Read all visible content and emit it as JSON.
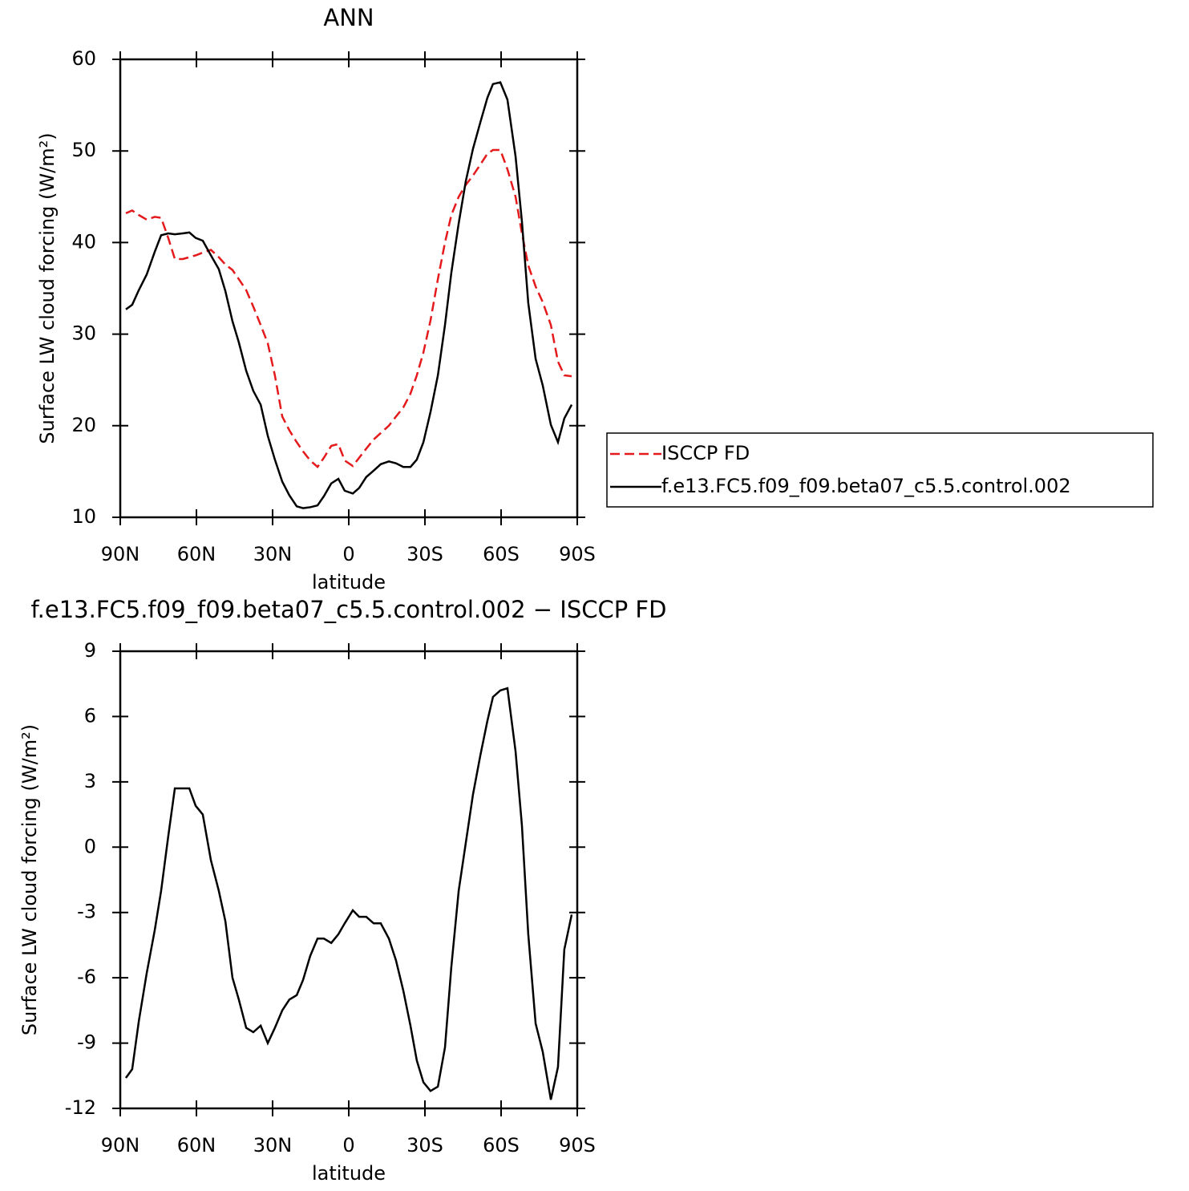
{
  "chart_data": [
    {
      "type": "line",
      "title": "ANN",
      "xlabel": "latitude",
      "ylabel": "Surface LW cloud forcing (W/m²)",
      "x": [
        87.8,
        85.3,
        82.7,
        79.6,
        76.4,
        73.9,
        71.1,
        68.5,
        65.4,
        62.8,
        60.3,
        57.5,
        54.3,
        51.2,
        48.6,
        45.8,
        43.3,
        40.4,
        37.6,
        34.7,
        31.9,
        29.1,
        26.2,
        23.4,
        20.5,
        18.0,
        15.2,
        12.3,
        9.8,
        6.9,
        4.1,
        1.6,
        -1.6,
        -4.1,
        -6.9,
        -9.8,
        -12.6,
        -15.8,
        -18.6,
        -21.5,
        -24.3,
        -26.8,
        -29.4,
        -32.2,
        -35.1,
        -37.9,
        -40.4,
        -43.3,
        -46.1,
        -48.9,
        -51.8,
        -54.6,
        -56.8,
        -59.7,
        -62.5,
        -65.7,
        -68.2,
        -70.7,
        -73.6,
        -76.4,
        -79.6,
        -82.4,
        -84.9,
        -87.8
      ],
      "series": [
        {
          "name": "ISCCP FD",
          "color": "#e41a1c",
          "style": "dashed",
          "values": [
            43.2,
            43.5,
            43.0,
            42.5,
            42.8,
            42.7,
            40.5,
            38.2,
            38.2,
            38.4,
            38.6,
            38.9,
            39.2,
            38.4,
            37.6,
            37.0,
            36.0,
            34.8,
            33.0,
            31.0,
            29.0,
            25.5,
            21.0,
            19.5,
            18.2,
            17.2,
            16.2,
            15.5,
            16.5,
            17.8,
            18.0,
            16.2,
            15.6,
            16.5,
            17.5,
            18.5,
            19.2,
            20.0,
            21.0,
            22.0,
            23.5,
            25.5,
            28.0,
            31.5,
            36.0,
            40.0,
            43.0,
            45.0,
            46.3,
            47.3,
            48.5,
            49.7,
            50.1,
            50.1,
            48.0,
            45.0,
            41.0,
            37.5,
            35.2,
            33.5,
            31.0,
            27.0,
            25.5,
            25.4
          ]
        },
        {
          "name": "f.e13.FC5.f09_f09.beta07_c5.5.control.002",
          "color": "#000000",
          "style": "solid",
          "values": [
            32.7,
            33.2,
            34.8,
            36.5,
            39.0,
            40.8,
            41.0,
            40.9,
            41.0,
            41.1,
            40.5,
            40.2,
            38.6,
            37.1,
            34.7,
            31.4,
            29.1,
            26.0,
            23.8,
            22.3,
            18.9,
            16.3,
            13.9,
            12.4,
            11.2,
            11.0,
            11.1,
            11.3,
            12.3,
            13.7,
            14.2,
            12.9,
            12.6,
            13.2,
            14.4,
            15.1,
            15.8,
            16.1,
            15.9,
            15.5,
            15.5,
            16.3,
            18.2,
            21.5,
            25.5,
            31.0,
            36.7,
            42.1,
            46.7,
            50.2,
            53.1,
            55.8,
            57.3,
            57.5,
            55.6,
            49.4,
            42.3,
            33.4,
            27.3,
            24.4,
            20.1,
            18.2,
            20.8,
            22.3
          ]
        }
      ],
      "xlim": [
        90,
        -90
      ],
      "xticks": [
        {
          "value": 90,
          "label": "90N"
        },
        {
          "value": 60,
          "label": "60N"
        },
        {
          "value": 30,
          "label": "30N"
        },
        0,
        {
          "value": -30,
          "label": "30S"
        },
        {
          "value": -60,
          "label": "60S"
        },
        {
          "value": -90,
          "label": "90S"
        }
      ],
      "ylim": [
        10,
        60
      ],
      "yticks": [
        10,
        20,
        30,
        40,
        50,
        60
      ],
      "legend": "right"
    },
    {
      "type": "line",
      "title": "f.e13.FC5.f09_f09.beta07_c5.5.control.002 − ISCCP FD",
      "xlabel": "latitude",
      "ylabel": "Surface LW cloud forcing (W/m²)",
      "x": [
        87.8,
        85.3,
        82.7,
        79.6,
        76.4,
        73.9,
        71.1,
        68.5,
        65.4,
        62.8,
        60.3,
        57.5,
        54.3,
        51.2,
        48.6,
        45.8,
        43.3,
        40.4,
        37.6,
        34.7,
        31.9,
        29.1,
        26.2,
        23.4,
        20.5,
        18.0,
        15.2,
        12.3,
        9.8,
        6.9,
        4.1,
        1.6,
        -1.6,
        -4.1,
        -6.9,
        -9.8,
        -12.6,
        -15.8,
        -18.6,
        -21.5,
        -24.3,
        -26.8,
        -29.4,
        -32.2,
        -35.1,
        -37.9,
        -40.4,
        -43.3,
        -46.1,
        -48.9,
        -51.8,
        -54.6,
        -56.8,
        -59.7,
        -62.5,
        -65.7,
        -68.2,
        -70.7,
        -73.6,
        -76.4,
        -79.6,
        -82.4,
        -84.9,
        -87.8
      ],
      "series": [
        {
          "color": "#000000",
          "style": "solid",
          "values": [
            -10.6,
            -10.2,
            -8.0,
            -5.8,
            -3.8,
            -2.0,
            0.5,
            2.7,
            2.7,
            2.7,
            1.9,
            1.5,
            -0.6,
            -2.0,
            -3.4,
            -6.0,
            -7.0,
            -8.3,
            -8.5,
            -8.2,
            -9.0,
            -8.3,
            -7.5,
            -7.0,
            -6.8,
            -6.1,
            -5.0,
            -4.2,
            -4.2,
            -4.4,
            -4.0,
            -3.5,
            -2.9,
            -3.2,
            -3.2,
            -3.5,
            -3.5,
            -4.2,
            -5.2,
            -6.6,
            -8.2,
            -9.8,
            -10.8,
            -11.2,
            -11.0,
            -9.2,
            -5.5,
            -2.0,
            0.2,
            2.4,
            4.2,
            5.8,
            6.9,
            7.2,
            7.3,
            4.4,
            1.0,
            -4.0,
            -8.1,
            -9.4,
            -11.6,
            -10.1,
            -4.7,
            -3.1
          ]
        }
      ],
      "xlim": [
        90,
        -90
      ],
      "xticks": [
        {
          "value": 90,
          "label": "90N"
        },
        {
          "value": 60,
          "label": "60N"
        },
        {
          "value": 30,
          "label": "30N"
        },
        0,
        {
          "value": -30,
          "label": "30S"
        },
        {
          "value": -60,
          "label": "60S"
        },
        {
          "value": -90,
          "label": "90S"
        }
      ],
      "ylim": [
        -12,
        9
      ],
      "yticks": [
        -12,
        -9,
        -6,
        -3,
        0,
        3,
        6,
        9
      ]
    }
  ]
}
